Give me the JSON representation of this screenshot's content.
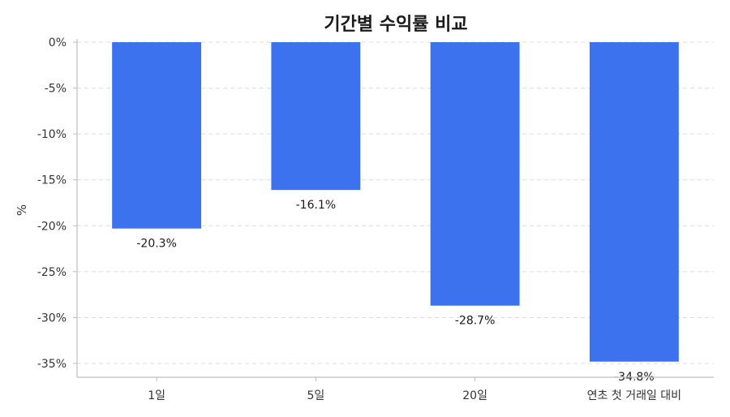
{
  "chart_data": {
    "type": "bar",
    "title": "기간별 수익률 비교",
    "ylabel": "%",
    "xlabel": "",
    "categories": [
      "1일",
      "5일",
      "20일",
      "연초 첫 거래일 대비"
    ],
    "values": [
      -20.3,
      -16.1,
      -28.7,
      -34.8
    ],
    "data_labels": [
      "-20.3%",
      "-16.1%",
      "-28.7%",
      "-34.8%"
    ],
    "ylim": [
      -36.5,
      0
    ],
    "yticks": [
      0,
      -5,
      -10,
      -15,
      -20,
      -25,
      -30,
      -35
    ],
    "ytick_labels": [
      "0%",
      "-5%",
      "-10%",
      "-15%",
      "-20%",
      "-25%",
      "-30%",
      "-35%"
    ],
    "bar_color": "#3d72ee",
    "grid": true
  }
}
